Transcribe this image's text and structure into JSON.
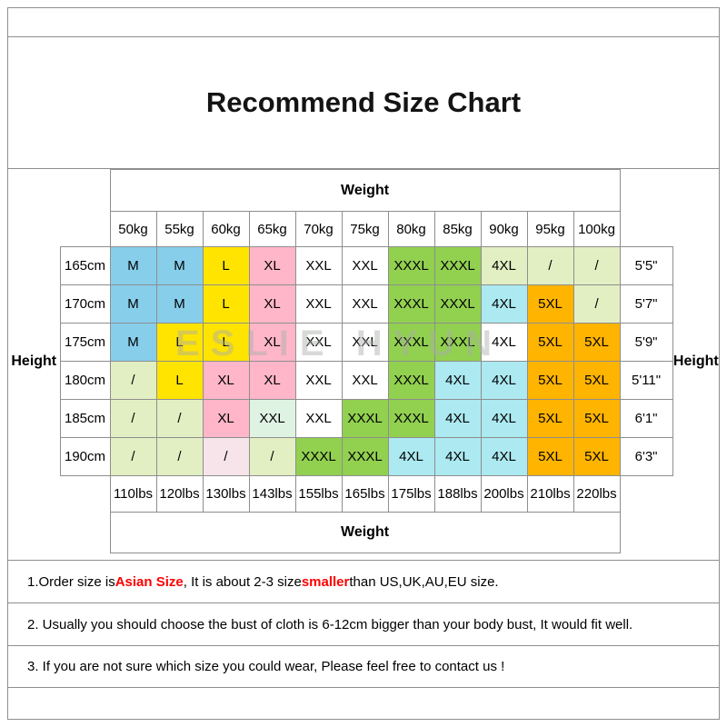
{
  "title": "Recommend Size Chart",
  "watermark": "ESLIE HYUN",
  "chart_data": {
    "type": "table",
    "title": "Recommend Size Chart",
    "weight_label": "Weight",
    "height_label": "Height",
    "columns_kg": [
      "50kg",
      "55kg",
      "60kg",
      "65kg",
      "70kg",
      "75kg",
      "80kg",
      "85kg",
      "90kg",
      "95kg",
      "100kg"
    ],
    "columns_lbs": [
      "110lbs",
      "120lbs",
      "130lbs",
      "143lbs",
      "155lbs",
      "165lbs",
      "175lbs",
      "188lbs",
      "200lbs",
      "210lbs",
      "220lbs"
    ],
    "palette": {
      "blue": "#87CEEB",
      "yellow": "#FFE400",
      "pink": "#FFB6C9",
      "white": "#FFFFFF",
      "green": "#92D050",
      "cyan": "#ACE9F0",
      "orange": "#FFB400",
      "pale": "#E2EFC3",
      "palepink": "#F6E4EA",
      "mint": "#DFF3E3"
    },
    "rows": [
      {
        "cm": "165cm",
        "ft": "5'5\"",
        "sizes": [
          {
            "t": "M",
            "c": "blue"
          },
          {
            "t": "M",
            "c": "blue"
          },
          {
            "t": "L",
            "c": "yellow"
          },
          {
            "t": "XL",
            "c": "pink"
          },
          {
            "t": "XXL",
            "c": "white"
          },
          {
            "t": "XXL",
            "c": "white"
          },
          {
            "t": "XXXL",
            "c": "green"
          },
          {
            "t": "XXXL",
            "c": "green"
          },
          {
            "t": "4XL",
            "c": "pale"
          },
          {
            "t": "/",
            "c": "pale"
          },
          {
            "t": "/",
            "c": "pale"
          }
        ]
      },
      {
        "cm": "170cm",
        "ft": "5'7\"",
        "sizes": [
          {
            "t": "M",
            "c": "blue"
          },
          {
            "t": "M",
            "c": "blue"
          },
          {
            "t": "L",
            "c": "yellow"
          },
          {
            "t": "XL",
            "c": "pink"
          },
          {
            "t": "XXL",
            "c": "white"
          },
          {
            "t": "XXL",
            "c": "white"
          },
          {
            "t": "XXXL",
            "c": "green"
          },
          {
            "t": "XXXL",
            "c": "green"
          },
          {
            "t": "4XL",
            "c": "cyan"
          },
          {
            "t": "5XL",
            "c": "orange"
          },
          {
            "t": "/",
            "c": "pale"
          }
        ]
      },
      {
        "cm": "175cm",
        "ft": "5'9\"",
        "sizes": [
          {
            "t": "M",
            "c": "blue"
          },
          {
            "t": "L",
            "c": "yellow"
          },
          {
            "t": "L",
            "c": "yellow"
          },
          {
            "t": "XL",
            "c": "pink"
          },
          {
            "t": "XXL",
            "c": "white"
          },
          {
            "t": "XXL",
            "c": "white"
          },
          {
            "t": "XXXL",
            "c": "green"
          },
          {
            "t": "XXXL",
            "c": "green"
          },
          {
            "t": "4XL",
            "c": "white"
          },
          {
            "t": "5XL",
            "c": "orange"
          },
          {
            "t": "5XL",
            "c": "orange"
          }
        ]
      },
      {
        "cm": "180cm",
        "ft": "5'11\"",
        "sizes": [
          {
            "t": "/",
            "c": "pale"
          },
          {
            "t": "L",
            "c": "yellow"
          },
          {
            "t": "XL",
            "c": "pink"
          },
          {
            "t": "XL",
            "c": "pink"
          },
          {
            "t": "XXL",
            "c": "white"
          },
          {
            "t": "XXL",
            "c": "white"
          },
          {
            "t": "XXXL",
            "c": "green"
          },
          {
            "t": "4XL",
            "c": "cyan"
          },
          {
            "t": "4XL",
            "c": "cyan"
          },
          {
            "t": "5XL",
            "c": "orange"
          },
          {
            "t": "5XL",
            "c": "orange"
          }
        ]
      },
      {
        "cm": "185cm",
        "ft": "6'1\"",
        "sizes": [
          {
            "t": "/",
            "c": "pale"
          },
          {
            "t": "/",
            "c": "pale"
          },
          {
            "t": "XL",
            "c": "pink"
          },
          {
            "t": "XXL",
            "c": "mint"
          },
          {
            "t": "XXL",
            "c": "white"
          },
          {
            "t": "XXXL",
            "c": "green"
          },
          {
            "t": "XXXL",
            "c": "green"
          },
          {
            "t": "4XL",
            "c": "cyan"
          },
          {
            "t": "4XL",
            "c": "cyan"
          },
          {
            "t": "5XL",
            "c": "orange"
          },
          {
            "t": "5XL",
            "c": "orange"
          }
        ]
      },
      {
        "cm": "190cm",
        "ft": "6'3\"",
        "sizes": [
          {
            "t": "/",
            "c": "pale"
          },
          {
            "t": "/",
            "c": "pale"
          },
          {
            "t": "/",
            "c": "palepink"
          },
          {
            "t": "/",
            "c": "pale"
          },
          {
            "t": "XXXL",
            "c": "green"
          },
          {
            "t": "XXXL",
            "c": "green"
          },
          {
            "t": "4XL",
            "c": "cyan"
          },
          {
            "t": "4XL",
            "c": "cyan"
          },
          {
            "t": "4XL",
            "c": "cyan"
          },
          {
            "t": "5XL",
            "c": "orange"
          },
          {
            "t": "5XL",
            "c": "orange"
          }
        ]
      }
    ]
  },
  "notes": [
    {
      "segments": [
        {
          "text": "1.Order size is ",
          "color": "#000000"
        },
        {
          "text": "Asian Size",
          "color": "#FF0000",
          "bold": true
        },
        {
          "text": ", It is about 2-3 size ",
          "color": "#000000"
        },
        {
          "text": "smaller",
          "color": "#FF0000",
          "bold": true
        },
        {
          "text": " than US,UK,AU,EU size.",
          "color": "#000000"
        }
      ]
    },
    {
      "segments": [
        {
          "text": "2. Usually you should choose the bust of cloth is 6-12cm bigger than your body bust, It would fit well.",
          "color": "#000000"
        }
      ]
    },
    {
      "segments": [
        {
          "text": "3. If you are not sure which size you could wear, Please feel free to contact us !",
          "color": "#000000"
        }
      ]
    }
  ]
}
